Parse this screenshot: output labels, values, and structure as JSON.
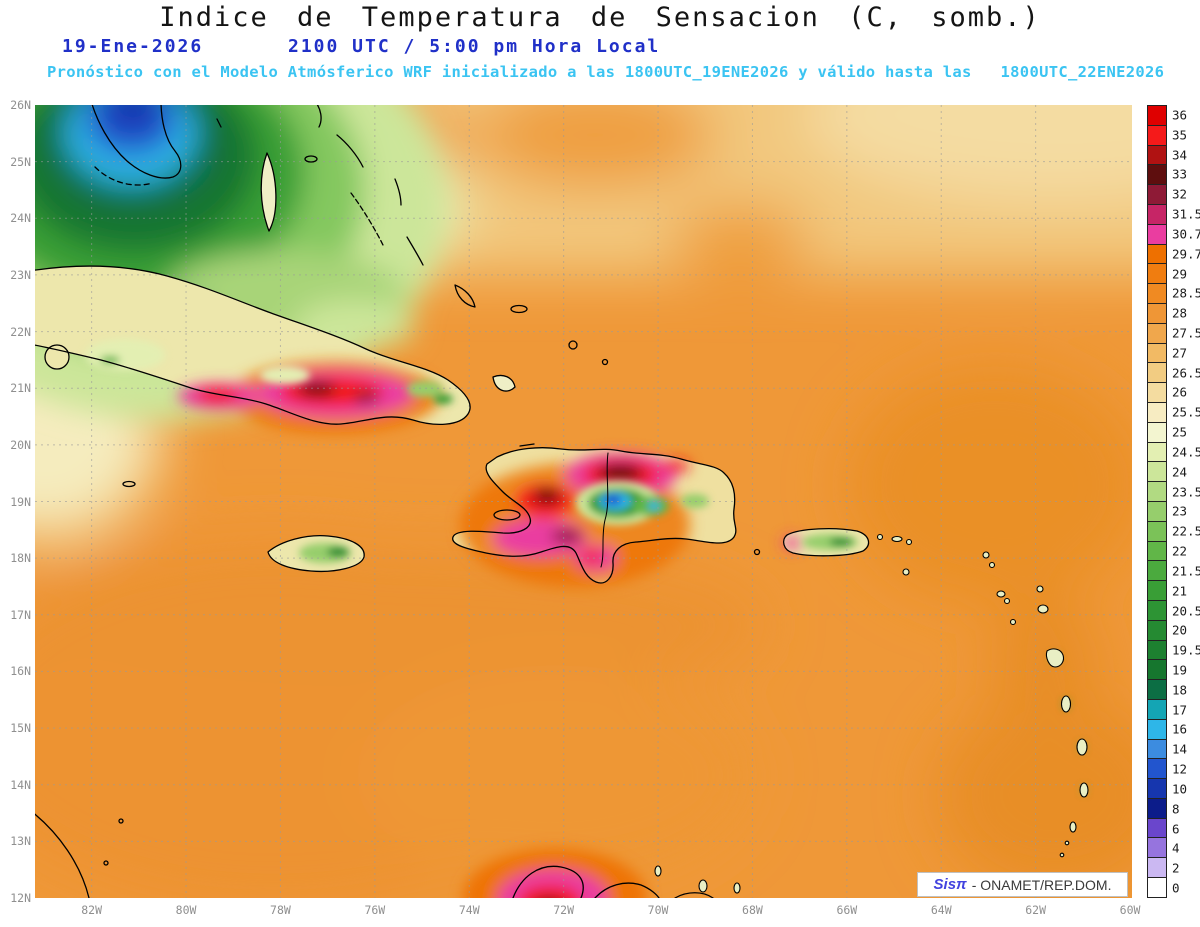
{
  "header": {
    "title": "Indice de Temperatura de Sensacion (C, somb.)",
    "date": "19-Ene-2026",
    "time": "2100 UTC / 5:00 pm Hora Local",
    "forecast": "Pronóstico con el Modelo Atmósferico WRF inicializado a las 1800UTC_19ENE2026 y válido hasta las   1800UTC_22ENE2026"
  },
  "map": {
    "lat_labels": [
      "26N",
      "25N",
      "24N",
      "23N",
      "22N",
      "21N",
      "20N",
      "19N",
      "18N",
      "17N",
      "16N",
      "15N",
      "14N",
      "13N",
      "12N"
    ],
    "lon_labels": [
      "82W",
      "80W",
      "78W",
      "76W",
      "74W",
      "72W",
      "70W",
      "68W",
      "66W",
      "64W",
      "62W",
      "60W"
    ]
  },
  "colorbar": {
    "unit": "C",
    "labels": [
      "36",
      "35",
      "34",
      "33",
      "32",
      "31.5",
      "30.7",
      "29.7",
      "29",
      "28.5",
      "28",
      "27.5",
      "27",
      "26.5",
      "26",
      "25.5",
      "25",
      "24.5",
      "24",
      "23.5",
      "23",
      "22.5",
      "22",
      "21.5",
      "21",
      "20.5",
      "20",
      "19.5",
      "19",
      "18",
      "17",
      "16",
      "14",
      "12",
      "10",
      "8",
      "6",
      "4",
      "2",
      "0"
    ],
    "colors": [
      "#DF0000",
      "#F51A1A",
      "#B01212",
      "#5E0E0E",
      "#8E1A36",
      "#C62566",
      "#EA3DA0",
      "#EE7000",
      "#F07D10",
      "#F08A22",
      "#EF9636",
      "#F0A74C",
      "#F2BA64",
      "#F2CC82",
      "#F4DCA0",
      "#F7ECC2",
      "#F3F5D0",
      "#E3EFB2",
      "#CCE69A",
      "#B1DA82",
      "#96CE6C",
      "#7BC258",
      "#61B648",
      "#4BAA3E",
      "#399E36",
      "#2D9434",
      "#258A32",
      "#1D8030",
      "#16762E",
      "#0C6E44",
      "#14A5B4",
      "#2EB6E8",
      "#3C8CE0",
      "#2255CE",
      "#1636AE",
      "#0C1C8A",
      "#6A46CC",
      "#9674DE",
      "#CBB8F2",
      "#FFFFFF"
    ]
  },
  "credit": {
    "brand": "Sisπ",
    "text": "- ONAMET/REP.DOM."
  }
}
